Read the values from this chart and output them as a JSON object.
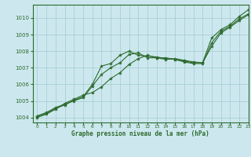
{
  "title": "Graphe pression niveau de la mer (hPa)",
  "bg_color": "#cce8ee",
  "line_color": "#2d6a2d",
  "grid_color": "#a8cfd4",
  "xlim": [
    -0.5,
    23
  ],
  "ylim": [
    1003.7,
    1010.8
  ],
  "xticks": [
    0,
    1,
    2,
    3,
    4,
    5,
    6,
    7,
    8,
    9,
    10,
    11,
    12,
    13,
    14,
    15,
    16,
    17,
    18,
    19,
    20,
    21,
    22,
    23
  ],
  "yticks": [
    1004,
    1005,
    1006,
    1007,
    1008,
    1009,
    1010
  ],
  "series": [
    {
      "x": [
        0,
        1,
        2,
        3,
        4,
        5,
        6,
        7,
        8,
        9,
        10,
        11,
        12,
        13,
        14,
        15,
        16,
        17,
        18,
        19,
        20,
        21,
        22,
        23
      ],
      "y": [
        1004.1,
        1004.3,
        1004.6,
        1004.8,
        1005.0,
        1005.2,
        1005.9,
        1006.6,
        1007.0,
        1007.3,
        1007.8,
        1007.9,
        1007.6,
        1007.6,
        1007.6,
        1007.5,
        1007.4,
        1007.3,
        1007.3,
        1008.8,
        1009.3,
        1009.6,
        1010.1,
        1010.5
      ]
    },
    {
      "x": [
        0,
        1,
        2,
        3,
        4,
        5,
        6,
        7,
        8,
        9,
        10,
        11,
        12,
        13,
        14,
        15,
        16,
        17,
        18,
        19,
        20,
        21,
        22,
        23
      ],
      "y": [
        1004.05,
        1004.25,
        1004.55,
        1004.75,
        1005.05,
        1005.25,
        1006.0,
        1007.1,
        1007.25,
        1007.75,
        1008.0,
        1007.75,
        1007.7,
        1007.65,
        1007.55,
        1007.5,
        1007.35,
        1007.25,
        1007.25,
        1008.5,
        1009.2,
        1009.5,
        1009.95,
        1010.25
      ]
    },
    {
      "x": [
        0,
        1,
        2,
        3,
        4,
        5,
        6,
        7,
        8,
        9,
        10,
        11,
        12,
        13,
        14,
        15,
        16,
        17,
        18,
        19,
        20,
        21,
        22,
        23
      ],
      "y": [
        1004.0,
        1004.2,
        1004.5,
        1004.85,
        1005.1,
        1005.35,
        1005.5,
        1005.85,
        1006.35,
        1006.7,
        1007.2,
        1007.55,
        1007.75,
        1007.6,
        1007.5,
        1007.55,
        1007.45,
        1007.35,
        1007.3,
        1008.3,
        1009.1,
        1009.45,
        1009.85,
        1010.2
      ]
    }
  ]
}
